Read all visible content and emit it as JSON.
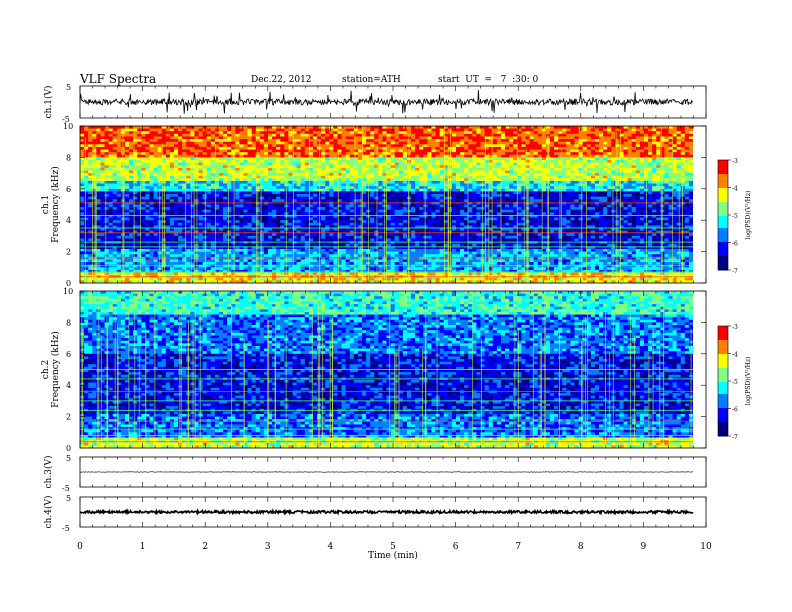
{
  "header": {
    "title": "VLF  Spectra",
    "date": "Dec.22, 2012",
    "station": "station=ATH",
    "start": "start  UT  =   7  :30: 0"
  },
  "colorbar": {
    "label": "log(PSD)(V²/Hz)",
    "ticks": [
      -3,
      -4,
      -5,
      -6,
      -7
    ],
    "colors": [
      "#000080",
      "#0000ff",
      "#0080ff",
      "#00ffff",
      "#80ff80",
      "#ffff00",
      "#ff8000",
      "#ff0000"
    ]
  },
  "chart_data": [
    {
      "type": "line",
      "panel": "ch.1",
      "ylabel": "ch.1(V)",
      "ylim": [
        -5,
        5
      ],
      "yticks": [
        5,
        -5
      ],
      "description_values": "noisy waveform around ~0 V with spikes up to ~±4 V",
      "x": [
        0,
        1,
        2,
        3,
        4,
        5,
        6,
        7,
        8,
        9,
        9.8
      ],
      "y": [
        0,
        0,
        0,
        0,
        0,
        0,
        0,
        0,
        0,
        0,
        0
      ]
    },
    {
      "type": "heatmap",
      "panel": "ch.1",
      "ylabel": "Frequency  (kHz)",
      "ylabel2": "ch.1",
      "ylim": [
        0,
        10
      ],
      "yticks": [
        0,
        2,
        4,
        6,
        8,
        10
      ],
      "dominant_bands_kHz": [
        {
          "range": [
            0,
            0.6
          ],
          "level": -4
        },
        {
          "range": [
            0.6,
            2
          ],
          "level": -5
        },
        {
          "range": [
            2,
            6
          ],
          "level": -6
        },
        {
          "range": [
            6,
            8
          ],
          "level": -5
        },
        {
          "range": [
            8,
            10
          ],
          "level": -3.5
        }
      ]
    },
    {
      "type": "heatmap",
      "panel": "ch.2",
      "ylabel": "Frequency  (kHz)",
      "ylabel2": "ch.2",
      "ylim": [
        0,
        10
      ],
      "yticks": [
        0,
        2,
        4,
        6,
        8,
        10
      ],
      "dominant_bands_kHz": [
        {
          "range": [
            0,
            0.6
          ],
          "level": -4
        },
        {
          "range": [
            0.6,
            2
          ],
          "level": -5
        },
        {
          "range": [
            2,
            8
          ],
          "level": -6
        },
        {
          "range": [
            8,
            10
          ],
          "level": -5
        }
      ]
    },
    {
      "type": "line",
      "panel": "ch.3",
      "ylabel": "ch.3(V)",
      "ylim": [
        -5,
        5
      ],
      "yticks": [
        5,
        -5
      ],
      "x": [
        0,
        9.8
      ],
      "y": [
        0,
        0
      ]
    },
    {
      "type": "line",
      "panel": "ch.4",
      "ylabel": "ch.4(V)",
      "ylim": [
        -5,
        5
      ],
      "yticks": [
        5,
        -5
      ],
      "x": [
        0,
        9.8
      ],
      "y": [
        0,
        0
      ]
    }
  ],
  "x_axis": {
    "label": "Time  (min)",
    "xlim": [
      0,
      10
    ],
    "ticks": [
      0,
      1,
      2,
      3,
      4,
      5,
      6,
      7,
      8,
      9,
      10
    ]
  }
}
